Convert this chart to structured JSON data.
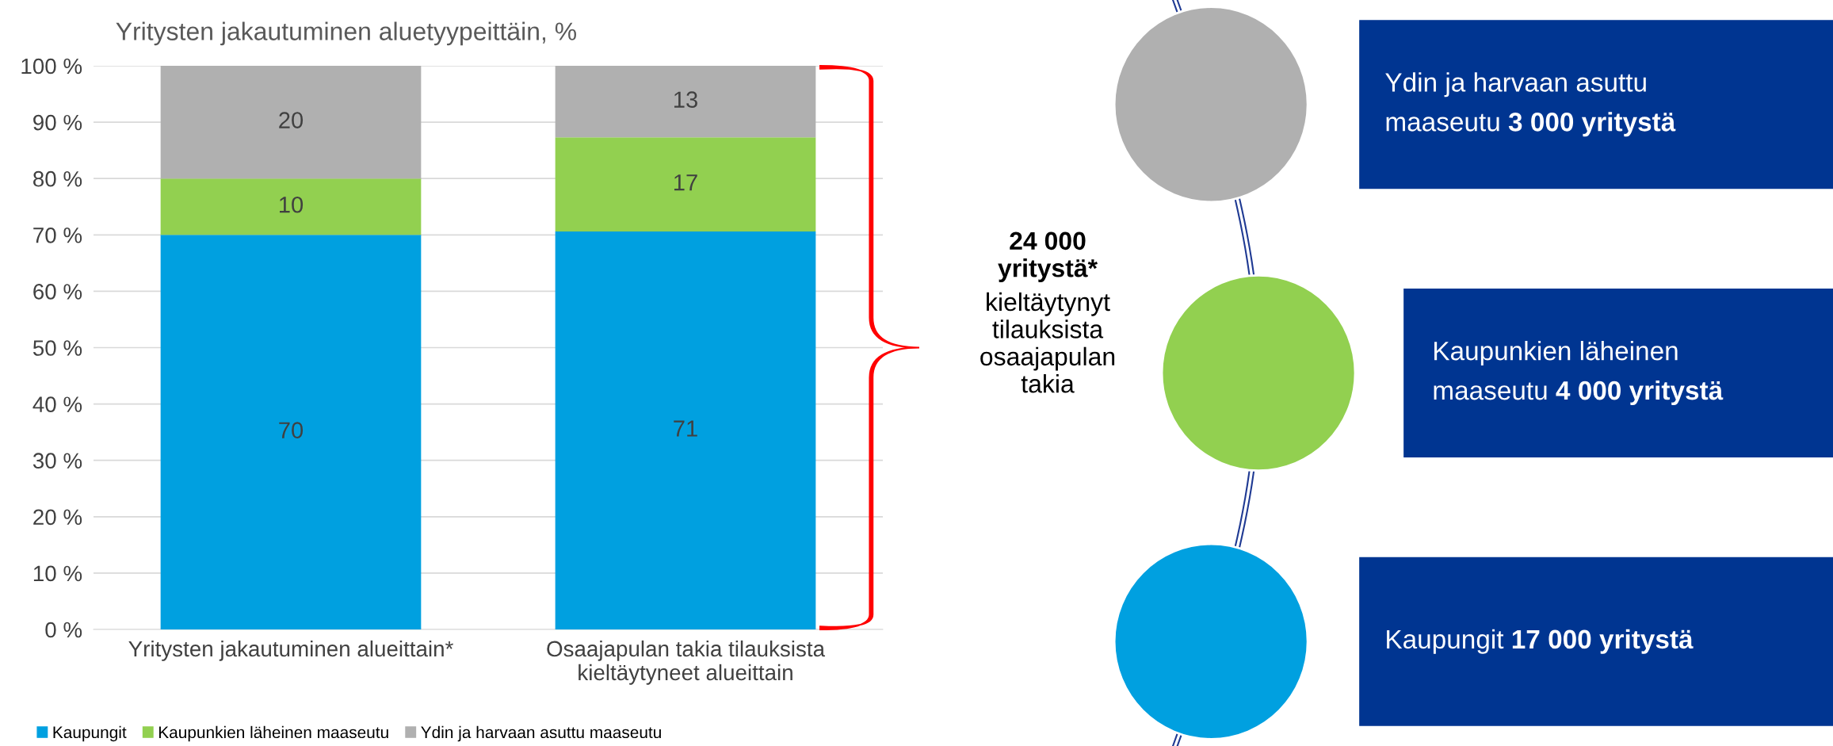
{
  "chart_data": [
    {
      "type": "bar",
      "title": "Yritysten jakautuminen aluetyypeittäin, %",
      "categories": [
        "Yritysten jakautuminen alueittain*",
        "Osaajapulan takia tilauksista kieltäytyneet alueittain"
      ],
      "series": [
        {
          "name": "Kaupungit",
          "color": "#00a0e0",
          "values": [
            70,
            70.6
          ],
          "value_labels": [
            "70",
            "71"
          ]
        },
        {
          "name": "Kaupunkien läheinen maaseutu",
          "color": "#92d050",
          "values": [
            10,
            16.7
          ],
          "value_labels": [
            "10",
            "17"
          ]
        },
        {
          "name": "Ydin ja harvaan asuttu maaseutu",
          "color": "#b0b0b0",
          "values": [
            20,
            12.7
          ],
          "value_labels": [
            "20",
            "13"
          ]
        }
      ],
      "stacked": true,
      "ylim": [
        0,
        100
      ],
      "yticks": [
        {
          "value": 0,
          "label": "0 %"
        },
        {
          "value": 10,
          "label": "10 %"
        },
        {
          "value": 20,
          "label": "20 %"
        },
        {
          "value": 30,
          "label": "30 %"
        },
        {
          "value": 40,
          "label": "40 %"
        },
        {
          "value": 50,
          "label": "50 %"
        },
        {
          "value": 60,
          "label": "60 %"
        },
        {
          "value": 70,
          "label": "70 %"
        },
        {
          "value": 80,
          "label": "80 %"
        },
        {
          "value": 90,
          "label": "90 %"
        },
        {
          "value": 100,
          "label": "100 %"
        }
      ],
      "grid": "y",
      "legend": "bottom",
      "annotations": [
        "24 000 yritystä*",
        "kieltäytynyt tilauksista osaajapulan takia"
      ]
    },
    {
      "type": "other",
      "categories": [
        "Ydin ja harvaan asuttu maaseutu",
        "Kaupunkien läheinen maaseutu",
        "Kaupungit"
      ],
      "value_labels": [
        "3 000 yritystä",
        "4 000 yritystä",
        "17 000 yritystä"
      ],
      "colors": [
        "#003591",
        "#003591",
        "#003591"
      ]
    }
  ]
}
